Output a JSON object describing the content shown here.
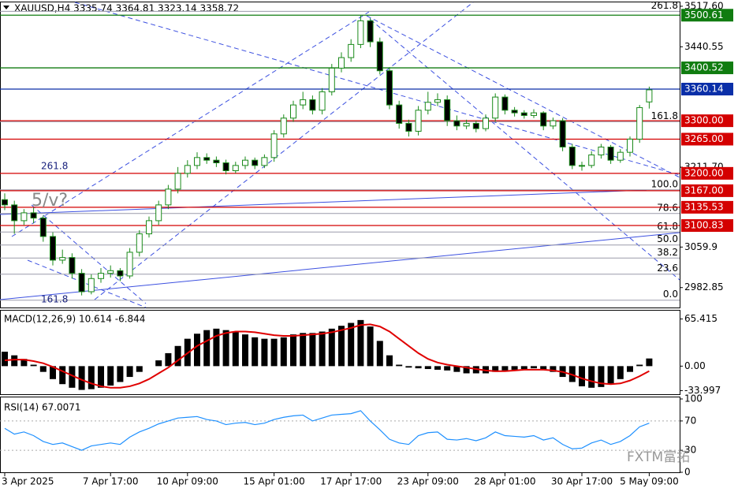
{
  "chart_data": [
    {
      "type": "candlestick",
      "title": "XAUUSD,H4  3335.74 3364.81 3323.14 3358.72",
      "categories": [
        "3 Apr 2025",
        null,
        null,
        null,
        null,
        null,
        null,
        null,
        null,
        null,
        null,
        "7 Apr 17:00",
        null,
        null,
        null,
        null,
        null,
        null,
        null,
        "10 Apr 09:00",
        null,
        null,
        null,
        null,
        null,
        null,
        null,
        null,
        "15 Apr 01:00",
        null,
        null,
        null,
        null,
        null,
        null,
        null,
        "17 Apr 17:00",
        null,
        null,
        null,
        null,
        null,
        null,
        null,
        "23 Apr 09:00",
        null,
        null,
        null,
        null,
        null,
        null,
        null,
        "28 Apr 01:00",
        null,
        null,
        null,
        null,
        null,
        null,
        null,
        "30 Apr 17:00",
        null,
        null,
        null,
        null,
        null,
        null,
        "5 May 09:00"
      ],
      "open": [
        3150,
        3140,
        3110,
        3125,
        3115,
        3080,
        3035,
        3040,
        3010,
        2975,
        3000,
        3010,
        3015,
        3005,
        3050,
        3085,
        3110,
        3140,
        3170,
        3200,
        3215,
        3230,
        3225,
        3220,
        3205,
        3215,
        3225,
        3215,
        3230,
        3275,
        3305,
        3330,
        3340,
        3320,
        3355,
        3400,
        3420,
        3445,
        3490,
        3450,
        3395,
        3330,
        3295,
        3280,
        3320,
        3335,
        3340,
        3300,
        3290,
        3295,
        3285,
        3305,
        3345,
        3320,
        3315,
        3310,
        3315,
        3290,
        3300,
        3250,
        3215,
        3215,
        3235,
        3250,
        3225,
        3240,
        3265,
        3335.74
      ],
      "high": [
        3162,
        3148,
        3132,
        3135,
        3120,
        3088,
        3055,
        3048,
        3018,
        3008,
        3020,
        3025,
        3020,
        3058,
        3092,
        3118,
        3148,
        3178,
        3212,
        3225,
        3240,
        3238,
        3232,
        3226,
        3222,
        3232,
        3230,
        3236,
        3282,
        3312,
        3338,
        3355,
        3348,
        3362,
        3408,
        3430,
        3455,
        3500,
        3495,
        3458,
        3402,
        3338,
        3302,
        3328,
        3355,
        3352,
        3348,
        3310,
        3302,
        3300,
        3312,
        3352,
        3350,
        3326,
        3320,
        3322,
        3318,
        3306,
        3305,
        3256,
        3222,
        3242,
        3256,
        3254,
        3246,
        3270,
        3330,
        3364.81
      ],
      "low": [
        3130,
        3085,
        3102,
        3105,
        3070,
        3025,
        3028,
        3000,
        2968,
        2970,
        2992,
        3002,
        2995,
        3000,
        3042,
        3078,
        3102,
        3132,
        3162,
        3192,
        3208,
        3218,
        3212,
        3198,
        3200,
        3208,
        3208,
        3210,
        3222,
        3268,
        3298,
        3322,
        3312,
        3312,
        3348,
        3392,
        3412,
        3438,
        3440,
        3388,
        3322,
        3285,
        3270,
        3272,
        3312,
        3328,
        3290,
        3282,
        3284,
        3278,
        3280,
        3298,
        3312,
        3308,
        3304,
        3305,
        3282,
        3284,
        3242,
        3208,
        3205,
        3210,
        3228,
        3218,
        3220,
        3232,
        3258,
        3323.14
      ],
      "close": [
        3140,
        3110,
        3125,
        3115,
        3080,
        3035,
        3040,
        3010,
        2975,
        3000,
        3010,
        3015,
        3005,
        3050,
        3085,
        3110,
        3140,
        3170,
        3200,
        3215,
        3230,
        3225,
        3220,
        3205,
        3215,
        3225,
        3215,
        3230,
        3275,
        3305,
        3330,
        3340,
        3320,
        3355,
        3400,
        3420,
        3445,
        3490,
        3450,
        3395,
        3330,
        3295,
        3280,
        3320,
        3335,
        3340,
        3300,
        3290,
        3295,
        3285,
        3305,
        3345,
        3320,
        3315,
        3310,
        3315,
        3290,
        3300,
        3250,
        3215,
        3215,
        3235,
        3250,
        3225,
        3240,
        3265,
        3325,
        3358.72
      ],
      "ylim": [
        2945,
        3525
      ],
      "yticks": [
        {
          "value": 3517.6,
          "label": "3517.60"
        },
        {
          "value": 3440.55,
          "label": "3440.55"
        },
        {
          "value": 3211.7,
          "label": "3211.70"
        },
        3059.9,
        2982.85
      ],
      "levels": [
        {
          "value": 3500.61,
          "label": "3500.61",
          "color": "#107c10"
        },
        {
          "value": 3400.52,
          "label": "3400.52",
          "color": "#107c10"
        },
        {
          "value": 3360.14,
          "label": "3360.14",
          "color": "#0a2fa8"
        },
        {
          "value": 3300,
          "label": "3300.00",
          "color": "#d40000"
        },
        {
          "value": 3265,
          "label": "3265.00",
          "color": "#d40000"
        },
        {
          "value": 3200,
          "label": "3200.00",
          "color": "#d40000"
        },
        {
          "value": 3167,
          "label": "3167.00",
          "color": "#d40000"
        },
        {
          "value": 3135.53,
          "label": "3135.53",
          "color": "#d40000"
        },
        {
          "value": 3100.83,
          "label": "3100.83",
          "color": "#d40000"
        }
      ],
      "fib_levels": [
        {
          "value": 3507.9,
          "label": "261.8"
        },
        {
          "value": 3298.2,
          "label": "161.8"
        },
        {
          "value": 3168.6,
          "label": "100.0"
        },
        {
          "value": 3123.7,
          "label": "78.6"
        },
        {
          "value": 3088.5,
          "label": "61.8"
        },
        {
          "value": 3063.8,
          "label": "50.0"
        },
        {
          "value": 3039.0,
          "label": "38.2"
        },
        {
          "value": 3008.4,
          "label": "23.6"
        },
        {
          "value": 2958.9,
          "label": "0.0"
        }
      ],
      "annotations": [
        "261.8",
        "161.8",
        "5/v?"
      ],
      "up_color": "#ffffff",
      "down_color": "#000000",
      "wick_color": "#1a8a1a"
    },
    {
      "type": "macd",
      "title": "MACD(12,26,9) 10.614 -6.844",
      "histogram": [
        20,
        15,
        10,
        2,
        -8,
        -18,
        -25,
        -30,
        -33,
        -32,
        -30,
        -27,
        -22,
        -15,
        -8,
        0,
        8,
        18,
        28,
        38,
        45,
        50,
        52,
        50,
        47,
        44,
        40,
        38,
        38,
        40,
        44,
        46,
        46,
        48,
        52,
        56,
        60,
        64,
        55,
        35,
        15,
        2,
        -2,
        -3,
        -4,
        -5,
        -6,
        -8,
        -10,
        -10,
        -10,
        -8,
        -6,
        -5,
        -4,
        -3,
        -5,
        -8,
        -15,
        -22,
        -28,
        -30,
        -29,
        -25,
        -18,
        -8,
        2,
        10.614
      ],
      "signal": [
        8,
        9,
        9,
        7,
        4,
        -1,
        -7,
        -13,
        -19,
        -24,
        -28,
        -30,
        -30,
        -28,
        -24,
        -18,
        -10,
        -2,
        8,
        18,
        28,
        35,
        42,
        46,
        48,
        48,
        47,
        45,
        43,
        42,
        42,
        43,
        44,
        45,
        47,
        50,
        53,
        57,
        58,
        55,
        48,
        38,
        28,
        18,
        10,
        5,
        2,
        0,
        -2,
        -4,
        -6,
        -7,
        -7,
        -6,
        -5,
        -5,
        -5,
        -6,
        -8,
        -12,
        -17,
        -21,
        -24,
        -25,
        -24,
        -20,
        -14,
        -6.844
      ],
      "histogram_color": "#000000",
      "signal_color": "#e00000",
      "ylim": [
        -39,
        77
      ],
      "yticks": [
        65.415,
        {
          "value": 0,
          "label": "0.00"
        },
        -33.997
      ]
    },
    {
      "type": "rsi",
      "title": "RSI(14) 67.0071",
      "values": [
        60,
        52,
        55,
        50,
        42,
        38,
        40,
        35,
        30,
        36,
        38,
        40,
        38,
        48,
        55,
        60,
        66,
        70,
        74,
        75,
        76,
        72,
        70,
        65,
        67,
        68,
        65,
        67,
        72,
        75,
        77,
        78,
        70,
        74,
        78,
        79,
        80,
        84,
        70,
        58,
        45,
        40,
        38,
        50,
        54,
        55,
        45,
        44,
        46,
        43,
        47,
        55,
        50,
        49,
        48,
        50,
        44,
        47,
        38,
        32,
        33,
        40,
        44,
        38,
        42,
        50,
        62,
        67.0071
      ],
      "color": "#1e90ff",
      "ylim": [
        0,
        100
      ],
      "yticks": [
        100,
        70,
        30,
        0
      ]
    }
  ],
  "watermark": "FXTM富拓"
}
